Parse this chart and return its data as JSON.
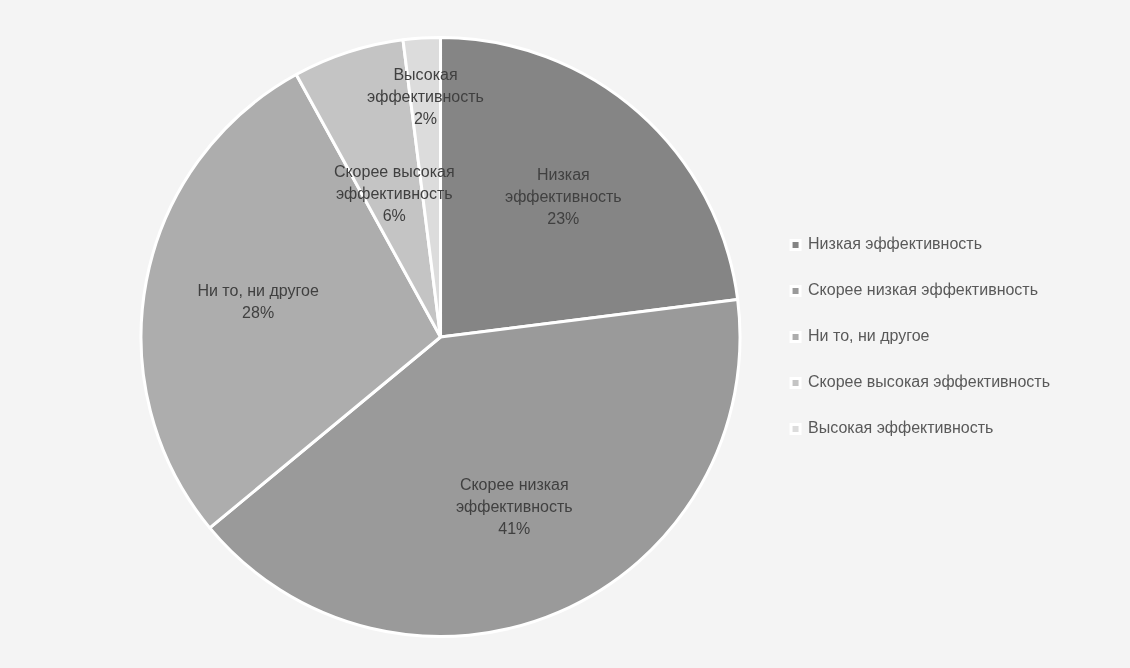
{
  "chart_data": {
    "type": "pie",
    "categories": [
      "Низкая эффективность",
      "Скорее низкая эффективность",
      "Ни то, ни другое",
      "Скорее высокая эффективность",
      "Высокая эффективность"
    ],
    "values": [
      23,
      41,
      28,
      6,
      2
    ],
    "colors": [
      "#858585",
      "#9a9a9a",
      "#adadad",
      "#c4c4c4",
      "#dcdcdc"
    ],
    "value_labels": [
      "23%",
      "41%",
      "28%",
      "6%",
      "2%"
    ],
    "legend": "right"
  }
}
